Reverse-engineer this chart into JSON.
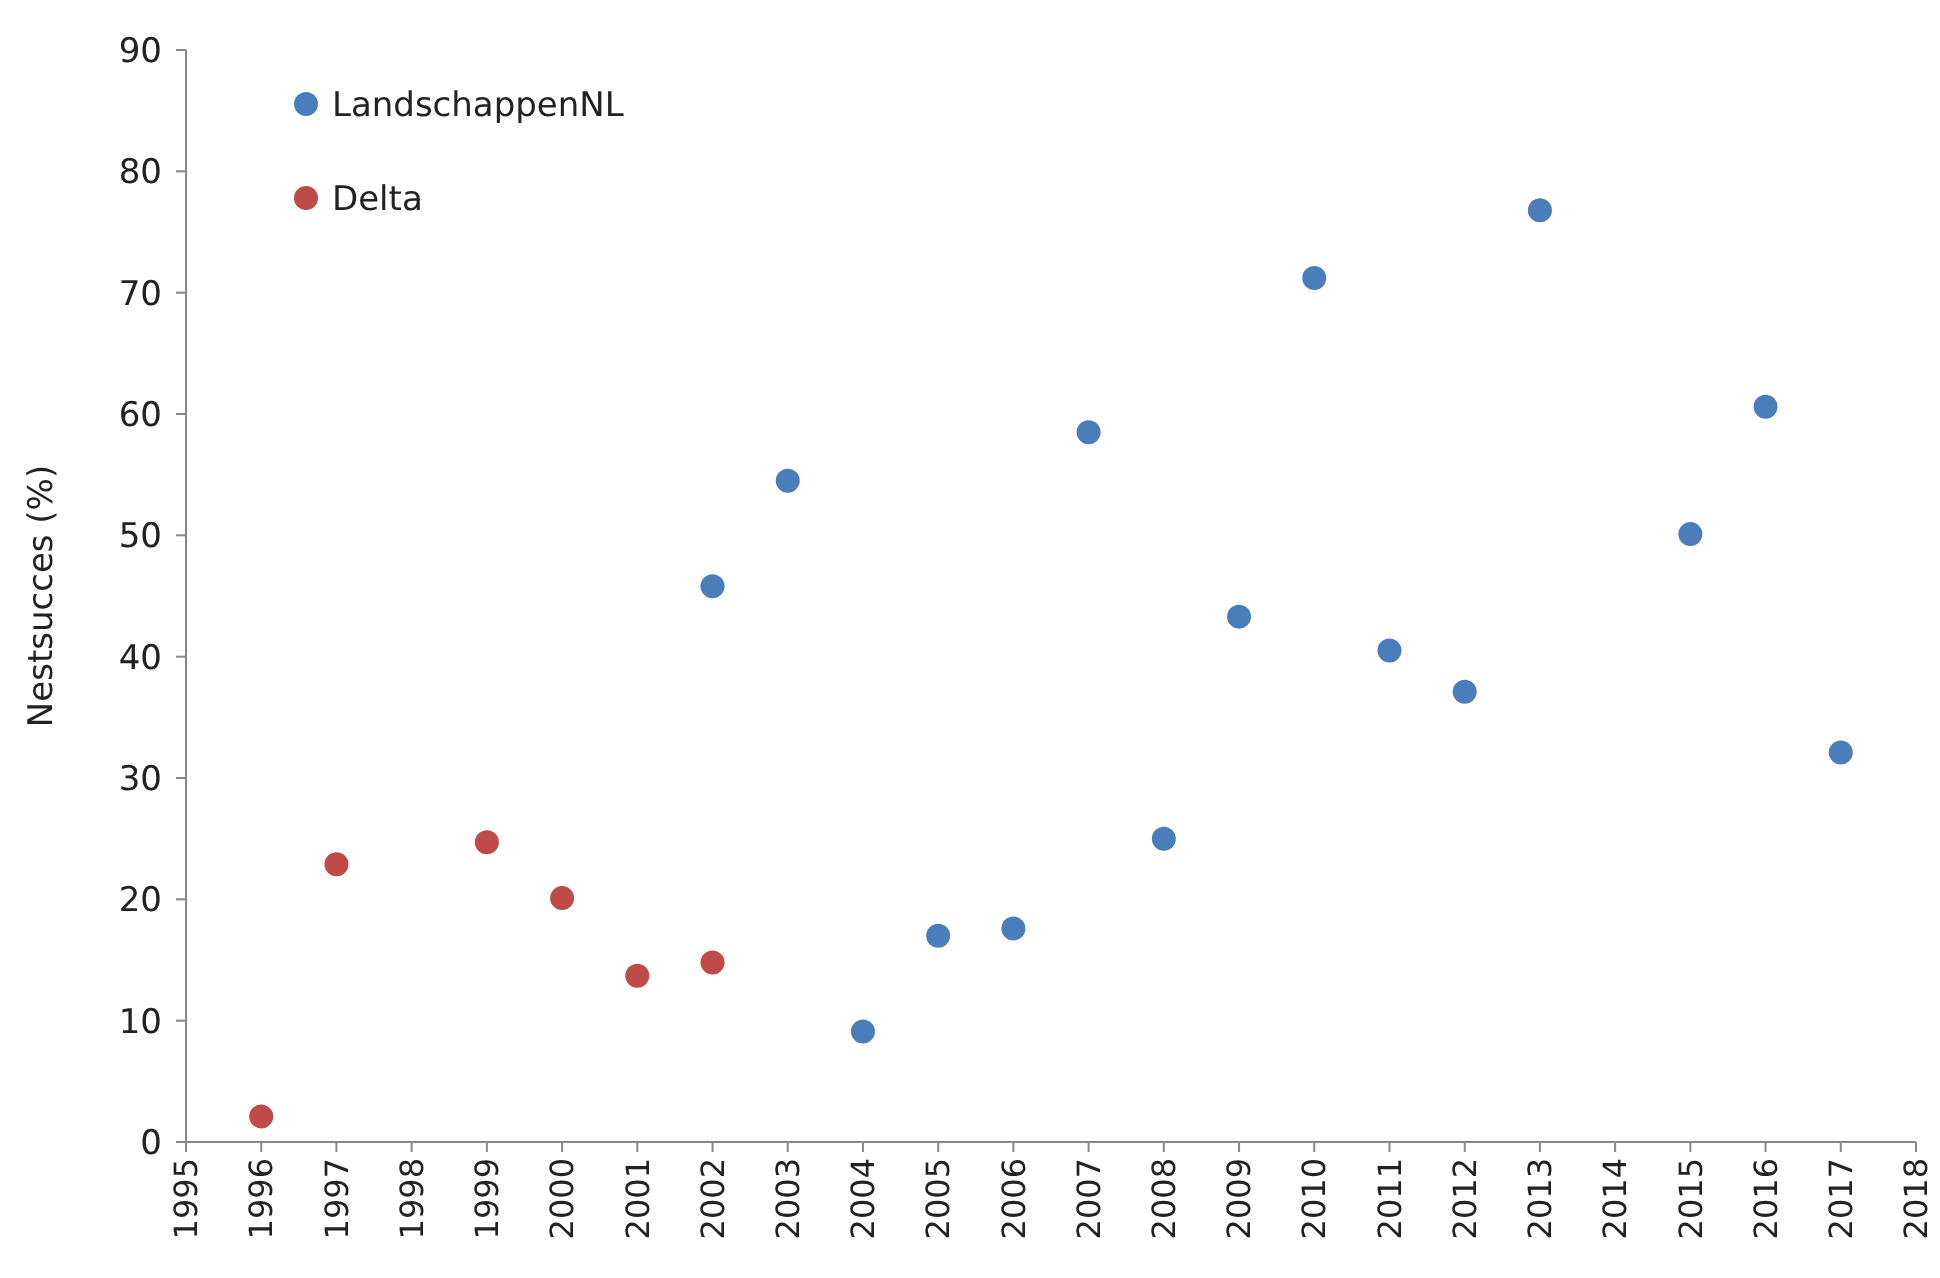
{
  "chart_data": {
    "type": "scatter",
    "ylabel": "Nestsucces (%)",
    "xlim": [
      1995,
      2018
    ],
    "xticks": [
      1995,
      1996,
      1997,
      1998,
      1999,
      2000,
      2001,
      2002,
      2003,
      2004,
      2005,
      2006,
      2007,
      2008,
      2009,
      2010,
      2011,
      2012,
      2013,
      2014,
      2015,
      2016,
      2017,
      2018
    ],
    "ylim": [
      0,
      90
    ],
    "yticks": [
      0,
      10,
      20,
      30,
      40,
      50,
      60,
      70,
      80,
      90
    ],
    "grid": false,
    "legend": "top left",
    "marker": "circle",
    "series": [
      {
        "name": "LandschappenNL",
        "color": "#4a7ebb",
        "x": [
          2002,
          2003,
          2004,
          2005,
          2006,
          2007,
          2008,
          2009,
          2010,
          2011,
          2012,
          2013,
          2015,
          2016,
          2017
        ],
        "values": [
          45.8,
          54.5,
          9.1,
          17.0,
          17.6,
          58.5,
          25.0,
          43.3,
          71.2,
          40.5,
          37.1,
          76.8,
          50.1,
          60.6,
          32.1
        ]
      },
      {
        "name": "Delta",
        "color": "#be4b48",
        "x": [
          1996,
          1997,
          1999,
          2000,
          2001,
          2002
        ],
        "values": [
          2.1,
          22.9,
          24.7,
          20.1,
          13.7,
          14.8
        ]
      }
    ]
  }
}
